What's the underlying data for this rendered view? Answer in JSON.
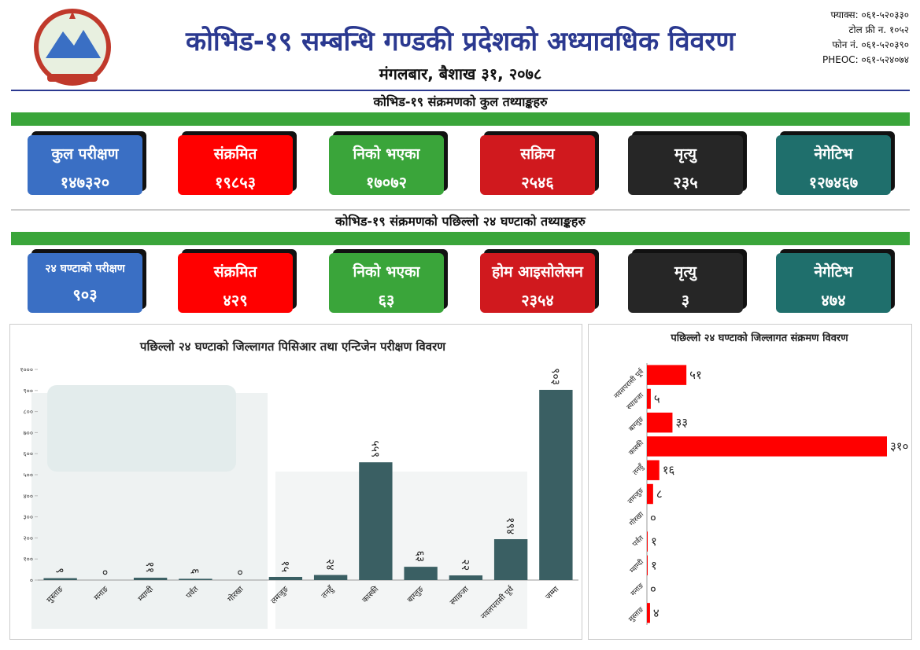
{
  "header": {
    "title": "कोभिड-१९ सम्बन्धि गण्डकी प्रदेशको अध्यावधिक विवरण",
    "date": "मंगलबार, बैशाख ३१, २०७८",
    "contacts": [
      "फ्याक्स: ०६१-५२०३३०",
      "टोल फ्री न. १०५२",
      "फोन नं. ०६१-५२०३९०",
      "PHEOC: ०६१-५२४०७४"
    ]
  },
  "sections": [
    {
      "heading": "कोभिड-१९ संक्रमणको कुल तथ्याङ्कहरु",
      "stats": [
        {
          "label": "कुल परीक्षण",
          "value": "१४७३२०",
          "color": "#3a6fc4"
        },
        {
          "label": "संक्रमित",
          "value": "१९८५३",
          "color": "#ff0000"
        },
        {
          "label": "निको भएका",
          "value": "१७०७२",
          "color": "#3aa53a"
        },
        {
          "label": "सक्रिय",
          "value": "२५४६",
          "color": "#d0191e"
        },
        {
          "label": "मृत्यु",
          "value": "२३५",
          "color": "#262626"
        },
        {
          "label": "नेगेटिभ",
          "value": "१२७४६७",
          "color": "#1f6f6c"
        }
      ]
    },
    {
      "heading": "कोभिड-१९ संक्रमणको पछिल्लो २४ घण्टाको तथ्याङ्कहरु",
      "stats": [
        {
          "label": "२४ घण्टाको परीक्षण",
          "value": "९०३",
          "color": "#3a6fc4"
        },
        {
          "label": "संक्रमित",
          "value": "४२९",
          "color": "#ff0000"
        },
        {
          "label": "निको भएका",
          "value": "६३",
          "color": "#3aa53a"
        },
        {
          "label": "होम आइसोलेसन",
          "value": "२३५४",
          "color": "#d0191e"
        },
        {
          "label": "मृत्यु",
          "value": "३",
          "color": "#262626"
        },
        {
          "label": "नेगेटिभ",
          "value": "४७४",
          "color": "#1f6f6c"
        }
      ]
    }
  ],
  "chart_data": [
    {
      "type": "bar",
      "title": "पछिल्लो २४ घण्टाको जिल्लागत पिसिआर तथा एन्टिजेन परीक्षण विवरण",
      "categories": [
        "मुस्ताङ",
        "मनाङ",
        "म्याग्दी",
        "पर्वत",
        "गोरखा",
        "लमजुङ",
        "तनहुँ",
        "कास्की",
        "बाग्लुङ",
        "स्याङजा",
        "नवलपरासी पूर्व",
        "जम्मा"
      ],
      "values": [
        9,
        0,
        11,
        6,
        0,
        15,
        24,
        559,
        63,
        22,
        194,
        903
      ],
      "value_labels": [
        "९",
        "०",
        "११",
        "६",
        "०",
        "१५",
        "२४",
        "५५९",
        "६३",
        "२२",
        "१९४",
        "९०३"
      ],
      "color": "#3a5f63",
      "ylim": [
        0,
        1000
      ],
      "yticks": [
        {
          "value": 0,
          "label": "०"
        },
        {
          "value": 100,
          "label": "१००"
        },
        {
          "value": 200,
          "label": "२००"
        },
        {
          "value": 300,
          "label": "३००"
        },
        {
          "value": 400,
          "label": "४००"
        },
        {
          "value": 500,
          "label": "५००"
        },
        {
          "value": 600,
          "label": "६००"
        },
        {
          "value": 700,
          "label": "७००"
        },
        {
          "value": 800,
          "label": "८००"
        },
        {
          "value": 900,
          "label": "९००"
        },
        {
          "value": 1000,
          "label": "१०००"
        }
      ]
    },
    {
      "type": "hbar",
      "title": "पछिल्लो २४ घण्टाको जिल्लागत संक्रमण विवरण",
      "categories": [
        "नवलपरासी पूर्व",
        "स्याङजा",
        "बाग्लुङ",
        "कास्की",
        "तनहुँ",
        "लमजुङ",
        "गोरखा",
        "पर्वत",
        "म्याग्दी",
        "मनाङ",
        "मुस्ताङ"
      ],
      "values": [
        51,
        5,
        33,
        310,
        16,
        8,
        0,
        1,
        1,
        0,
        4
      ],
      "value_labels": [
        "५१",
        "५",
        "३३",
        "३१०",
        "१६",
        "८",
        "०",
        "१",
        "१",
        "०",
        "४"
      ],
      "color": "#ff0000"
    }
  ]
}
